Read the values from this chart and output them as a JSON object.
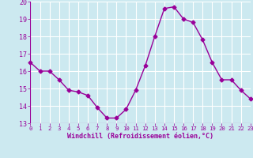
{
  "x": [
    0,
    1,
    2,
    3,
    4,
    5,
    6,
    7,
    8,
    9,
    10,
    11,
    12,
    13,
    14,
    15,
    16,
    17,
    18,
    19,
    20,
    21,
    22,
    23
  ],
  "y": [
    16.5,
    16.0,
    16.0,
    15.5,
    14.9,
    14.8,
    14.6,
    13.9,
    13.3,
    13.3,
    13.8,
    14.9,
    16.3,
    18.0,
    19.6,
    19.7,
    19.0,
    18.8,
    17.8,
    16.5,
    15.5,
    15.5,
    14.9,
    14.4
  ],
  "line_color": "#990099",
  "marker": "D",
  "marker_size": 2.5,
  "bg_color": "#cce9f0",
  "grid_color": "#ffffff",
  "xlabel": "Windchill (Refroidissement éolien,°C)",
  "xlabel_color": "#990099",
  "tick_color": "#990099",
  "ylim": [
    13,
    20
  ],
  "xlim": [
    0,
    23
  ],
  "yticks": [
    13,
    14,
    15,
    16,
    17,
    18,
    19,
    20
  ],
  "xticks": [
    0,
    1,
    2,
    3,
    4,
    5,
    6,
    7,
    8,
    9,
    10,
    11,
    12,
    13,
    14,
    15,
    16,
    17,
    18,
    19,
    20,
    21,
    22,
    23
  ]
}
